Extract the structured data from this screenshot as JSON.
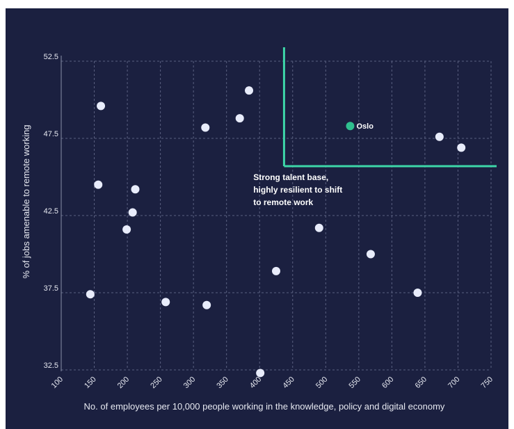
{
  "chart_data": {
    "type": "scatter",
    "xlabel": "No. of employees per 10,000 people working in the knowledge, policy and digital economy",
    "ylabel": "% of jobs amenable to remote working",
    "xlim": [
      100,
      750
    ],
    "ylim": [
      32.5,
      52.5
    ],
    "x_ticks": [
      "100",
      "150",
      "200",
      "250",
      "300",
      "350",
      "400",
      "450",
      "500",
      "550",
      "600",
      "650",
      "700",
      "750"
    ],
    "y_ticks": [
      "32.5",
      "37.5",
      "42.5",
      "47.5",
      "52.5"
    ],
    "grid": true,
    "colors": {
      "background": "#1b2040",
      "point": "#e8ecfb",
      "highlight": "#2fbf8f",
      "grid": "#5a6080",
      "quadrant_line": "#3dd6a8"
    },
    "points": [
      {
        "x": 160,
        "y": 49.6
      },
      {
        "x": 156,
        "y": 44.5
      },
      {
        "x": 212,
        "y": 44.2
      },
      {
        "x": 208,
        "y": 42.7
      },
      {
        "x": 199,
        "y": 41.6
      },
      {
        "x": 144,
        "y": 37.4
      },
      {
        "x": 258,
        "y": 36.9
      },
      {
        "x": 320,
        "y": 36.7
      },
      {
        "x": 318,
        "y": 48.2
      },
      {
        "x": 370,
        "y": 48.8
      },
      {
        "x": 384,
        "y": 50.6
      },
      {
        "x": 401,
        "y": 32.3
      },
      {
        "x": 425,
        "y": 38.9
      },
      {
        "x": 490,
        "y": 41.7
      },
      {
        "x": 568,
        "y": 40.0
      },
      {
        "x": 639,
        "y": 37.5
      },
      {
        "x": 672,
        "y": 47.6
      },
      {
        "x": 705,
        "y": 46.9
      }
    ],
    "highlight": {
      "label": "Oslo",
      "x": 537,
      "y": 48.3
    },
    "quadrant": {
      "x": 437,
      "y": 45.7
    },
    "annotation": {
      "lines": [
        "Strong talent base,",
        "highly resilient to shift",
        "to remote work"
      ],
      "x": 400,
      "y": 44.8
    }
  }
}
